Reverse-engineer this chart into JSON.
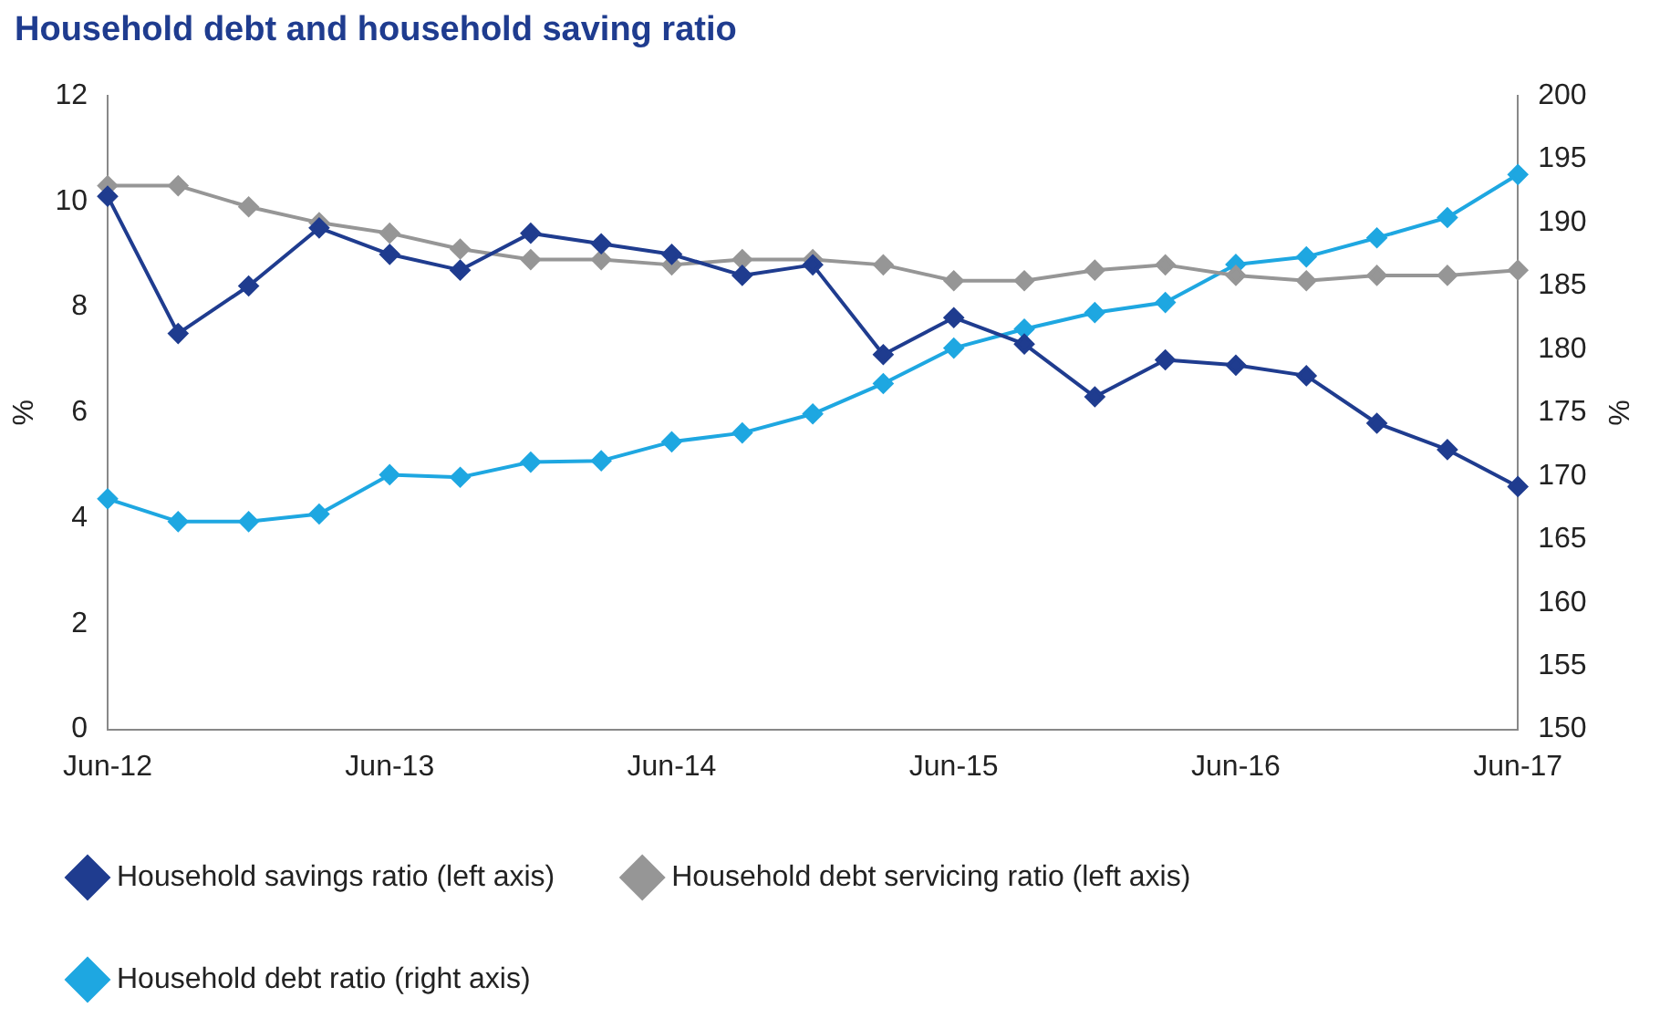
{
  "chart_data": {
    "type": "line",
    "title": "Household debt and household saving ratio",
    "ylabel": "%",
    "y2label": "%",
    "categories": [
      "Jun-12",
      null,
      null,
      null,
      "Jun-13",
      null,
      null,
      null,
      "Jun-14",
      null,
      null,
      null,
      "Jun-15",
      null,
      null,
      null,
      "Jun-16",
      null,
      null,
      null,
      "Jun-17"
    ],
    "series": [
      {
        "name": "Household savings ratio (left axis)",
        "color": "#1f3c8f",
        "values": [
          10.1,
          7.5,
          8.4,
          9.5,
          9.0,
          8.7,
          9.4,
          9.2,
          9.0,
          8.6,
          8.8,
          7.1,
          7.8,
          7.3,
          6.3,
          7.0,
          6.9,
          6.7,
          5.8,
          5.3,
          4.6
        ]
      },
      {
        "name": "Household debt servicing ratio (left axis)",
        "color": "#969696",
        "values": [
          10.3,
          10.3,
          9.9,
          9.6,
          9.4,
          9.1,
          8.9,
          8.9,
          8.8,
          8.9,
          8.9,
          8.8,
          8.5,
          8.5,
          8.7,
          8.8,
          8.6,
          8.5,
          8.6,
          8.6,
          8.7
        ]
      },
      {
        "name": "Household debt ratio (right axis)",
        "color": "#1ea7e1",
        "axis": "y2",
        "values": [
          168.2,
          166.4,
          166.4,
          167.0,
          170.1,
          169.9,
          171.1,
          171.2,
          172.7,
          173.4,
          174.9,
          177.3,
          180.1,
          181.6,
          182.9,
          183.7,
          186.7,
          187.3,
          188.8,
          190.4,
          193.8
        ]
      }
    ],
    "ylim": [
      0,
      12
    ],
    "yticks": [
      0,
      2,
      4,
      6,
      8,
      10,
      12
    ],
    "y2lim": [
      150,
      200
    ],
    "y2ticks": [
      150,
      155,
      160,
      165,
      170,
      175,
      180,
      185,
      190,
      195,
      200
    ],
    "grid": false,
    "legend": "bottom",
    "marker": "diamond",
    "line_style": "solid"
  }
}
